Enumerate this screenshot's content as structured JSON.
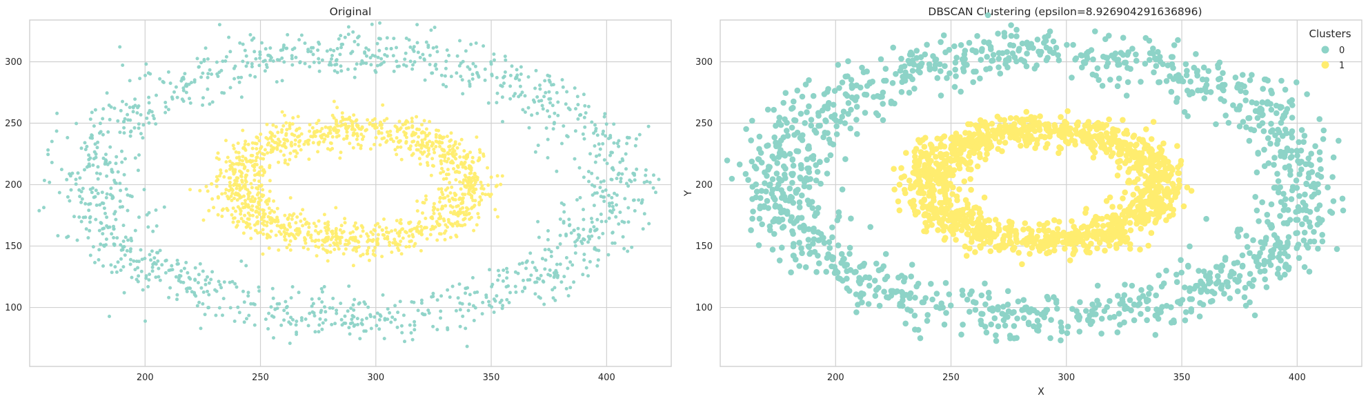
{
  "chart_data": [
    {
      "type": "scatter",
      "title": "Original",
      "xlabel": "",
      "ylabel": "",
      "xlim": [
        150,
        428
      ],
      "ylim": [
        52,
        334
      ],
      "xticks": [
        200,
        250,
        300,
        350,
        400
      ],
      "yticks": [
        100,
        150,
        200,
        250,
        300
      ],
      "grid": true,
      "marker_size": "small",
      "series": [
        {
          "ring": {
            "cx": 290,
            "cy": 200,
            "rx": 113,
            "ry": 108,
            "spread": 10
          },
          "color": "#8dd3c7",
          "n": 1300
        },
        {
          "ring": {
            "cx": 290,
            "cy": 200,
            "rx": 50,
            "ry": 45,
            "spread": 7
          },
          "color": "#ffed6f",
          "n": 1300
        }
      ]
    },
    {
      "type": "scatter",
      "title": "DBSCAN Clustering (epsilon=8.926904291636896)",
      "xlabel": "X",
      "ylabel": "Y",
      "xlim": [
        150,
        428
      ],
      "ylim": [
        52,
        334
      ],
      "xticks": [
        200,
        250,
        300,
        350,
        400
      ],
      "yticks": [
        100,
        150,
        200,
        250,
        300
      ],
      "grid": true,
      "marker_size": "large",
      "legend": {
        "title": "Clusters",
        "placement": "top-right"
      },
      "series": [
        {
          "name": "0",
          "ring": {
            "cx": 290,
            "cy": 200,
            "rx": 113,
            "ry": 108,
            "spread": 10
          },
          "color": "#8dd3c7",
          "n": 1300
        },
        {
          "name": "1",
          "ring": {
            "cx": 290,
            "cy": 200,
            "rx": 50,
            "ry": 45,
            "spread": 7
          },
          "color": "#ffed6f",
          "n": 1300
        }
      ]
    }
  ]
}
